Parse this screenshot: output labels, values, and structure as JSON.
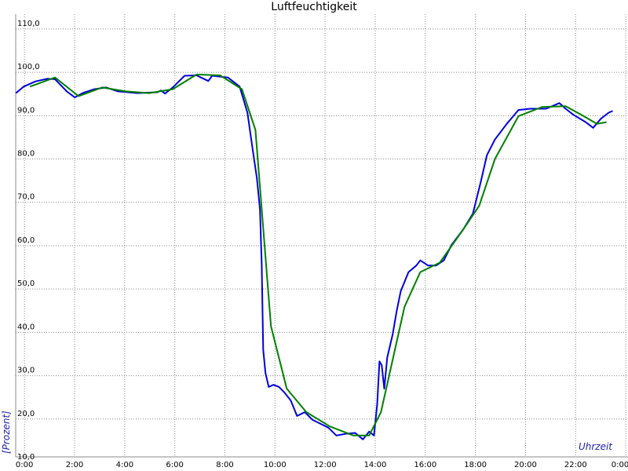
{
  "chart_data": {
    "type": "line",
    "title": "Luftfeuchtigkeit",
    "x_label": "Uhrzeit",
    "y_label": "[Prozent]",
    "xlim": [
      -0.35,
      24.09
    ],
    "ylim": [
      10,
      112.7
    ],
    "grid": true,
    "xticks": [
      {
        "value": 0,
        "label": "0:00"
      },
      {
        "value": 2,
        "label": "2:00"
      },
      {
        "value": 4,
        "label": "4:00"
      },
      {
        "value": 6,
        "label": "6:00"
      },
      {
        "value": 8,
        "label": "8:00"
      },
      {
        "value": 10,
        "label": "10:00"
      },
      {
        "value": 12,
        "label": "12:00"
      },
      {
        "value": 14,
        "label": "14:00"
      },
      {
        "value": 16,
        "label": "16:00"
      },
      {
        "value": 18,
        "label": "18:00"
      },
      {
        "value": 20,
        "label": "20:00"
      },
      {
        "value": 22,
        "label": "22:00"
      },
      {
        "value": 24,
        "label": "0:00"
      }
    ],
    "yticks": [
      {
        "value": 10,
        "label": "10,0"
      },
      {
        "value": 20,
        "label": "20,0"
      },
      {
        "value": 30,
        "label": "30,0"
      },
      {
        "value": 40,
        "label": "40,0"
      },
      {
        "value": 50,
        "label": "50,0"
      },
      {
        "value": 60,
        "label": "60,0"
      },
      {
        "value": 70,
        "label": "70,0"
      },
      {
        "value": 80,
        "label": "80,0"
      },
      {
        "value": 90,
        "label": "90,0"
      },
      {
        "value": 100,
        "label": "100,0"
      },
      {
        "value": 110,
        "label": "110,0"
      }
    ],
    "series": [
      {
        "color": "#0000dd",
        "x": [
          -0.34,
          -0.03,
          0.44,
          0.91,
          1.22,
          1.69,
          2.01,
          2.32,
          2.79,
          3.26,
          3.73,
          4.51,
          5.3,
          5.45,
          5.61,
          5.92,
          6.39,
          6.87,
          7.34,
          7.49,
          8.12,
          8.59,
          8.9,
          9.12,
          9.28,
          9.4,
          9.47,
          9.53,
          9.62,
          9.75,
          9.94,
          10.16,
          10.38,
          10.63,
          10.88,
          11.19,
          11.5,
          11.82,
          12.13,
          12.45,
          12.82,
          13.2,
          13.51,
          13.76,
          13.95,
          14.08,
          14.17,
          14.26,
          14.36,
          14.48,
          14.7,
          14.86,
          15.02,
          15.33,
          15.64,
          15.8,
          16.11,
          16.43,
          16.74,
          17.05,
          17.52,
          17.9,
          18.21,
          18.46,
          18.78,
          19.25,
          19.72,
          20.19,
          20.82,
          21.35,
          21.6,
          21.91,
          22.38,
          22.7,
          23.01,
          23.32,
          23.48
        ],
        "values": [
          95.2,
          96.7,
          97.9,
          98.5,
          98.4,
          95.6,
          94.2,
          95.2,
          96.1,
          96.5,
          95.6,
          95.2,
          95.4,
          95.8,
          95.1,
          96.5,
          99.2,
          99.3,
          98.0,
          99.2,
          98.8,
          96.7,
          90.7,
          81.8,
          75.5,
          68.3,
          55.7,
          36.0,
          30.6,
          27.4,
          27.9,
          27.4,
          26.1,
          24.3,
          20.7,
          21.6,
          19.8,
          18.9,
          18.0,
          16.2,
          16.6,
          16.8,
          15.3,
          17.1,
          16.2,
          23.4,
          33.3,
          32.4,
          27.0,
          34.2,
          39.6,
          45.0,
          49.5,
          53.9,
          55.4,
          56.6,
          55.4,
          55.4,
          56.6,
          60.2,
          63.8,
          67.4,
          74.6,
          80.9,
          84.5,
          88.1,
          91.3,
          91.6,
          91.6,
          92.9,
          91.6,
          90.2,
          88.6,
          87.2,
          89.3,
          90.7,
          91.1
        ]
      },
      {
        "color": "#008000",
        "x": [
          0.22,
          1.22,
          2.16,
          3.1,
          4.04,
          4.98,
          5.92,
          6.87,
          7.81,
          8.68,
          9.22,
          9.84,
          10.47,
          11.25,
          12.19,
          13.13,
          13.76,
          14.23,
          15.17,
          15.8,
          16.58,
          17.52,
          18.15,
          18.78,
          19.72,
          20.66,
          21.6,
          22.23,
          22.85,
          23.23
        ],
        "values": [
          96.7,
          98.8,
          94.5,
          96.5,
          95.6,
          95.2,
          96.1,
          99.5,
          99.3,
          96.1,
          86.7,
          41.4,
          27.0,
          21.6,
          18.3,
          16.2,
          16.2,
          21.6,
          45.9,
          53.9,
          56.1,
          63.8,
          69.2,
          80.0,
          89.9,
          92.0,
          92.2,
          90.2,
          88.1,
          88.5
        ]
      }
    ]
  }
}
